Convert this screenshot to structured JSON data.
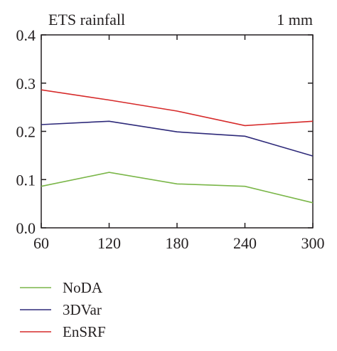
{
  "chart_data": {
    "type": "line",
    "title": "ETS rainfall",
    "threshold_label": "1 mm",
    "xlabel": "",
    "ylabel": "",
    "x": [
      60,
      120,
      180,
      240,
      300
    ],
    "xlim": [
      60,
      300
    ],
    "ylim": [
      0,
      0.4
    ],
    "y_ticks": [
      "0.0",
      "0.1",
      "0.2",
      "0.3",
      "0.4"
    ],
    "x_ticks": [
      "60",
      "120",
      "180",
      "240",
      "300"
    ],
    "grid": false,
    "legend_position": "bottom-left, outside plot",
    "series": [
      {
        "name": "NoDA",
        "color": "#7ab648",
        "values": [
          0.086,
          0.115,
          0.091,
          0.086,
          0.052
        ]
      },
      {
        "name": "3DVar",
        "color": "#2e2a7a",
        "values": [
          0.214,
          0.221,
          0.199,
          0.19,
          0.149
        ]
      },
      {
        "name": "EnSRF",
        "color": "#d62a2a",
        "values": [
          0.286,
          0.265,
          0.242,
          0.212,
          0.221
        ]
      }
    ]
  }
}
